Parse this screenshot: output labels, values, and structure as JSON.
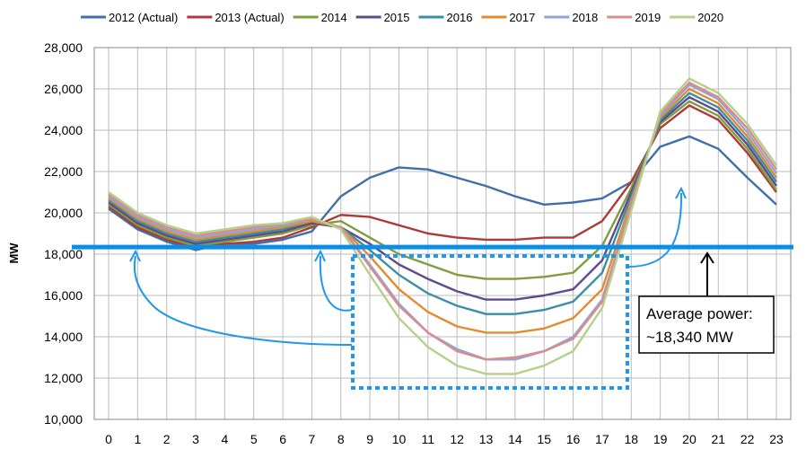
{
  "chart_data": {
    "type": "line",
    "title": "",
    "xlabel": "",
    "ylabel": "MW",
    "x": [
      0,
      1,
      2,
      3,
      4,
      5,
      6,
      7,
      8,
      9,
      10,
      11,
      12,
      13,
      14,
      15,
      16,
      17,
      18,
      19,
      20,
      21,
      22,
      23
    ],
    "x_tick_labels": [
      "0",
      "1",
      "2",
      "3",
      "4",
      "5",
      "6",
      "7",
      "8",
      "9",
      "10",
      "11",
      "12",
      "13",
      "14",
      "15",
      "16",
      "17",
      "18",
      "19",
      "20",
      "21",
      "22",
      "23"
    ],
    "ylim": [
      10000,
      28000
    ],
    "y_ticks": [
      10000,
      12000,
      14000,
      16000,
      18000,
      20000,
      22000,
      24000,
      26000,
      28000
    ],
    "y_tick_labels": [
      "10,000",
      "12,000",
      "14,000",
      "16,000",
      "18,000",
      "20,000",
      "22,000",
      "24,000",
      "26,000",
      "28,000"
    ],
    "grid": true,
    "legend_position": "top",
    "series": [
      {
        "name": "2012 (Actual)",
        "color": "#3f6fa8",
        "values": [
          20200,
          19200,
          18600,
          18200,
          18500,
          18500,
          18700,
          19100,
          20800,
          21700,
          22200,
          22100,
          21700,
          21300,
          20800,
          20400,
          20500,
          20700,
          21500,
          23200,
          23700,
          23100,
          21700,
          20400
        ]
      },
      {
        "name": "2013 (Actual)",
        "color": "#b03a3a",
        "values": [
          20300,
          19300,
          18700,
          18300,
          18500,
          18600,
          18800,
          19300,
          19900,
          19800,
          19400,
          19000,
          18800,
          18700,
          18700,
          18800,
          18800,
          19600,
          21500,
          24100,
          25200,
          24500,
          22900,
          21000
        ]
      },
      {
        "name": "2014",
        "color": "#7f9e3c",
        "values": [
          20400,
          19400,
          18800,
          18400,
          18600,
          18800,
          19000,
          19400,
          19600,
          18800,
          18000,
          17500,
          17000,
          16800,
          16800,
          16900,
          17100,
          18400,
          21200,
          24300,
          25400,
          24700,
          23100,
          21100
        ]
      },
      {
        "name": "2015",
        "color": "#5e4a8c",
        "values": [
          20500,
          19500,
          18900,
          18500,
          18700,
          18900,
          19100,
          19500,
          19300,
          18500,
          17500,
          16800,
          16200,
          15800,
          15800,
          16000,
          16300,
          17700,
          21000,
          24400,
          25600,
          24900,
          23300,
          21300
        ]
      },
      {
        "name": "2016",
        "color": "#3a8fa3",
        "values": [
          20600,
          19600,
          19000,
          18600,
          18800,
          19000,
          19200,
          19600,
          19300,
          18200,
          17000,
          16100,
          15500,
          15100,
          15100,
          15300,
          15700,
          17100,
          20800,
          24500,
          25800,
          25100,
          23500,
          21500
        ]
      },
      {
        "name": "2017",
        "color": "#e58a2e",
        "values": [
          20700,
          19700,
          19100,
          18700,
          18900,
          19100,
          19300,
          19600,
          19300,
          17900,
          16300,
          15200,
          14500,
          14200,
          14200,
          14400,
          14900,
          16300,
          20600,
          24600,
          26000,
          25300,
          23700,
          21700
        ]
      },
      {
        "name": "2018",
        "color": "#8ea6d8",
        "values": [
          20800,
          19800,
          19200,
          18800,
          19000,
          19200,
          19400,
          19700,
          19300,
          17500,
          15600,
          14200,
          13400,
          12900,
          12900,
          13300,
          14000,
          15800,
          20400,
          24700,
          26200,
          25500,
          23900,
          21900
        ]
      },
      {
        "name": "2019",
        "color": "#d98c8c",
        "values": [
          20900,
          19900,
          19300,
          18900,
          19100,
          19300,
          19500,
          19700,
          19300,
          17400,
          15500,
          14200,
          13300,
          12900,
          13000,
          13300,
          13900,
          15700,
          20300,
          24800,
          26300,
          25600,
          24100,
          22100
        ]
      },
      {
        "name": "2020",
        "color": "#b5d08a",
        "values": [
          21000,
          20000,
          19400,
          19000,
          19200,
          19400,
          19500,
          19800,
          19200,
          17000,
          14900,
          13500,
          12600,
          12200,
          12200,
          12600,
          13300,
          15400,
          20100,
          24900,
          26500,
          25800,
          24300,
          22300
        ]
      }
    ],
    "reference_line": {
      "value": 18340,
      "color": "#0a8ee8"
    },
    "annotations": {
      "box_lines": [
        "Average power:",
        "~18,340 MW"
      ],
      "accent_color": "#1f97ea"
    }
  }
}
